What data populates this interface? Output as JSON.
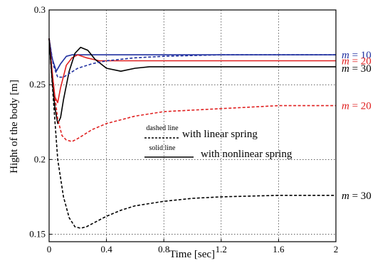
{
  "chart_data": {
    "type": "line",
    "xlabel": "Time [sec]",
    "ylabel": "Hight of the body [m]",
    "xlim": [
      0,
      2
    ],
    "ylim": [
      0.145,
      0.3
    ],
    "x_ticks": [
      0,
      0.4,
      0.8,
      1.2,
      1.6,
      2
    ],
    "x_tick_labels": [
      "0",
      "0.4",
      "0.8",
      "1.2",
      "1.6",
      "2"
    ],
    "y_ticks": [
      0.15,
      0.2,
      0.25,
      0.3
    ],
    "y_tick_labels": [
      "0.15",
      "0.2",
      "0.25",
      "0.3"
    ],
    "grid": true,
    "legend": [
      {
        "sample": "dashed line",
        "text": "with linear spring",
        "style": "dashed"
      },
      {
        "sample": "solid line",
        "text": "with nonlinear spring",
        "style": "solid"
      }
    ],
    "series": [
      {
        "style": "solid",
        "color": "#2030a0",
        "label": "m = 10",
        "x": [
          0,
          0.02,
          0.05,
          0.08,
          0.12,
          0.16,
          0.2,
          0.3,
          0.5,
          2
        ],
        "y": [
          0.281,
          0.268,
          0.259,
          0.264,
          0.269,
          0.27,
          0.27,
          0.27,
          0.27,
          0.27
        ]
      },
      {
        "style": "solid",
        "color": "#e02020",
        "label": "m = 20",
        "x": [
          0,
          0.02,
          0.04,
          0.06,
          0.08,
          0.12,
          0.16,
          0.2,
          0.26,
          0.35,
          0.5,
          0.7,
          2
        ],
        "y": [
          0.281,
          0.26,
          0.242,
          0.238,
          0.248,
          0.263,
          0.268,
          0.27,
          0.268,
          0.266,
          0.266,
          0.266,
          0.266
        ]
      },
      {
        "style": "solid",
        "color": "#000000",
        "label": "m = 30",
        "x": [
          0,
          0.02,
          0.04,
          0.06,
          0.08,
          0.1,
          0.14,
          0.18,
          0.22,
          0.27,
          0.32,
          0.4,
          0.5,
          0.6,
          0.7,
          2
        ],
        "y": [
          0.281,
          0.255,
          0.235,
          0.224,
          0.228,
          0.24,
          0.259,
          0.271,
          0.275,
          0.273,
          0.267,
          0.261,
          0.259,
          0.261,
          0.262,
          0.262
        ]
      },
      {
        "style": "dashed",
        "color": "#2030a0",
        "label": "m = 10",
        "x": [
          0,
          0.03,
          0.06,
          0.1,
          0.15,
          0.2,
          0.3,
          0.4,
          0.6,
          0.8,
          1.2,
          2
        ],
        "y": [
          0.281,
          0.263,
          0.255,
          0.255,
          0.258,
          0.261,
          0.264,
          0.266,
          0.268,
          0.269,
          0.27,
          0.27
        ]
      },
      {
        "style": "dashed",
        "color": "#e02020",
        "label": "m = 20",
        "x": [
          0,
          0.03,
          0.06,
          0.09,
          0.12,
          0.16,
          0.2,
          0.3,
          0.4,
          0.6,
          0.8,
          1.2,
          1.6,
          2
        ],
        "y": [
          0.281,
          0.25,
          0.227,
          0.216,
          0.213,
          0.212,
          0.214,
          0.22,
          0.224,
          0.229,
          0.232,
          0.234,
          0.236,
          0.236
        ]
      },
      {
        "style": "dashed",
        "color": "#000000",
        "label": "m = 30",
        "x": [
          0,
          0.03,
          0.06,
          0.1,
          0.14,
          0.18,
          0.22,
          0.26,
          0.3,
          0.4,
          0.5,
          0.6,
          0.8,
          1.0,
          1.2,
          1.6,
          2
        ],
        "y": [
          0.281,
          0.24,
          0.2,
          0.175,
          0.161,
          0.155,
          0.154,
          0.155,
          0.157,
          0.162,
          0.166,
          0.169,
          0.172,
          0.174,
          0.175,
          0.176,
          0.176
        ]
      }
    ],
    "annotations": [
      {
        "var": "m",
        "text": " = 10",
        "color": "#2030a0",
        "y": 0.27
      },
      {
        "var": "m",
        "text": " = 20",
        "color": "#e02020",
        "y": 0.266
      },
      {
        "var": "m",
        "text": " = 30",
        "color": "#000000",
        "y": 0.261
      },
      {
        "var": "m",
        "text": " = 20",
        "color": "#e02020",
        "y": 0.236
      },
      {
        "var": "m",
        "text": " = 30",
        "color": "#000000",
        "y": 0.176
      }
    ]
  }
}
